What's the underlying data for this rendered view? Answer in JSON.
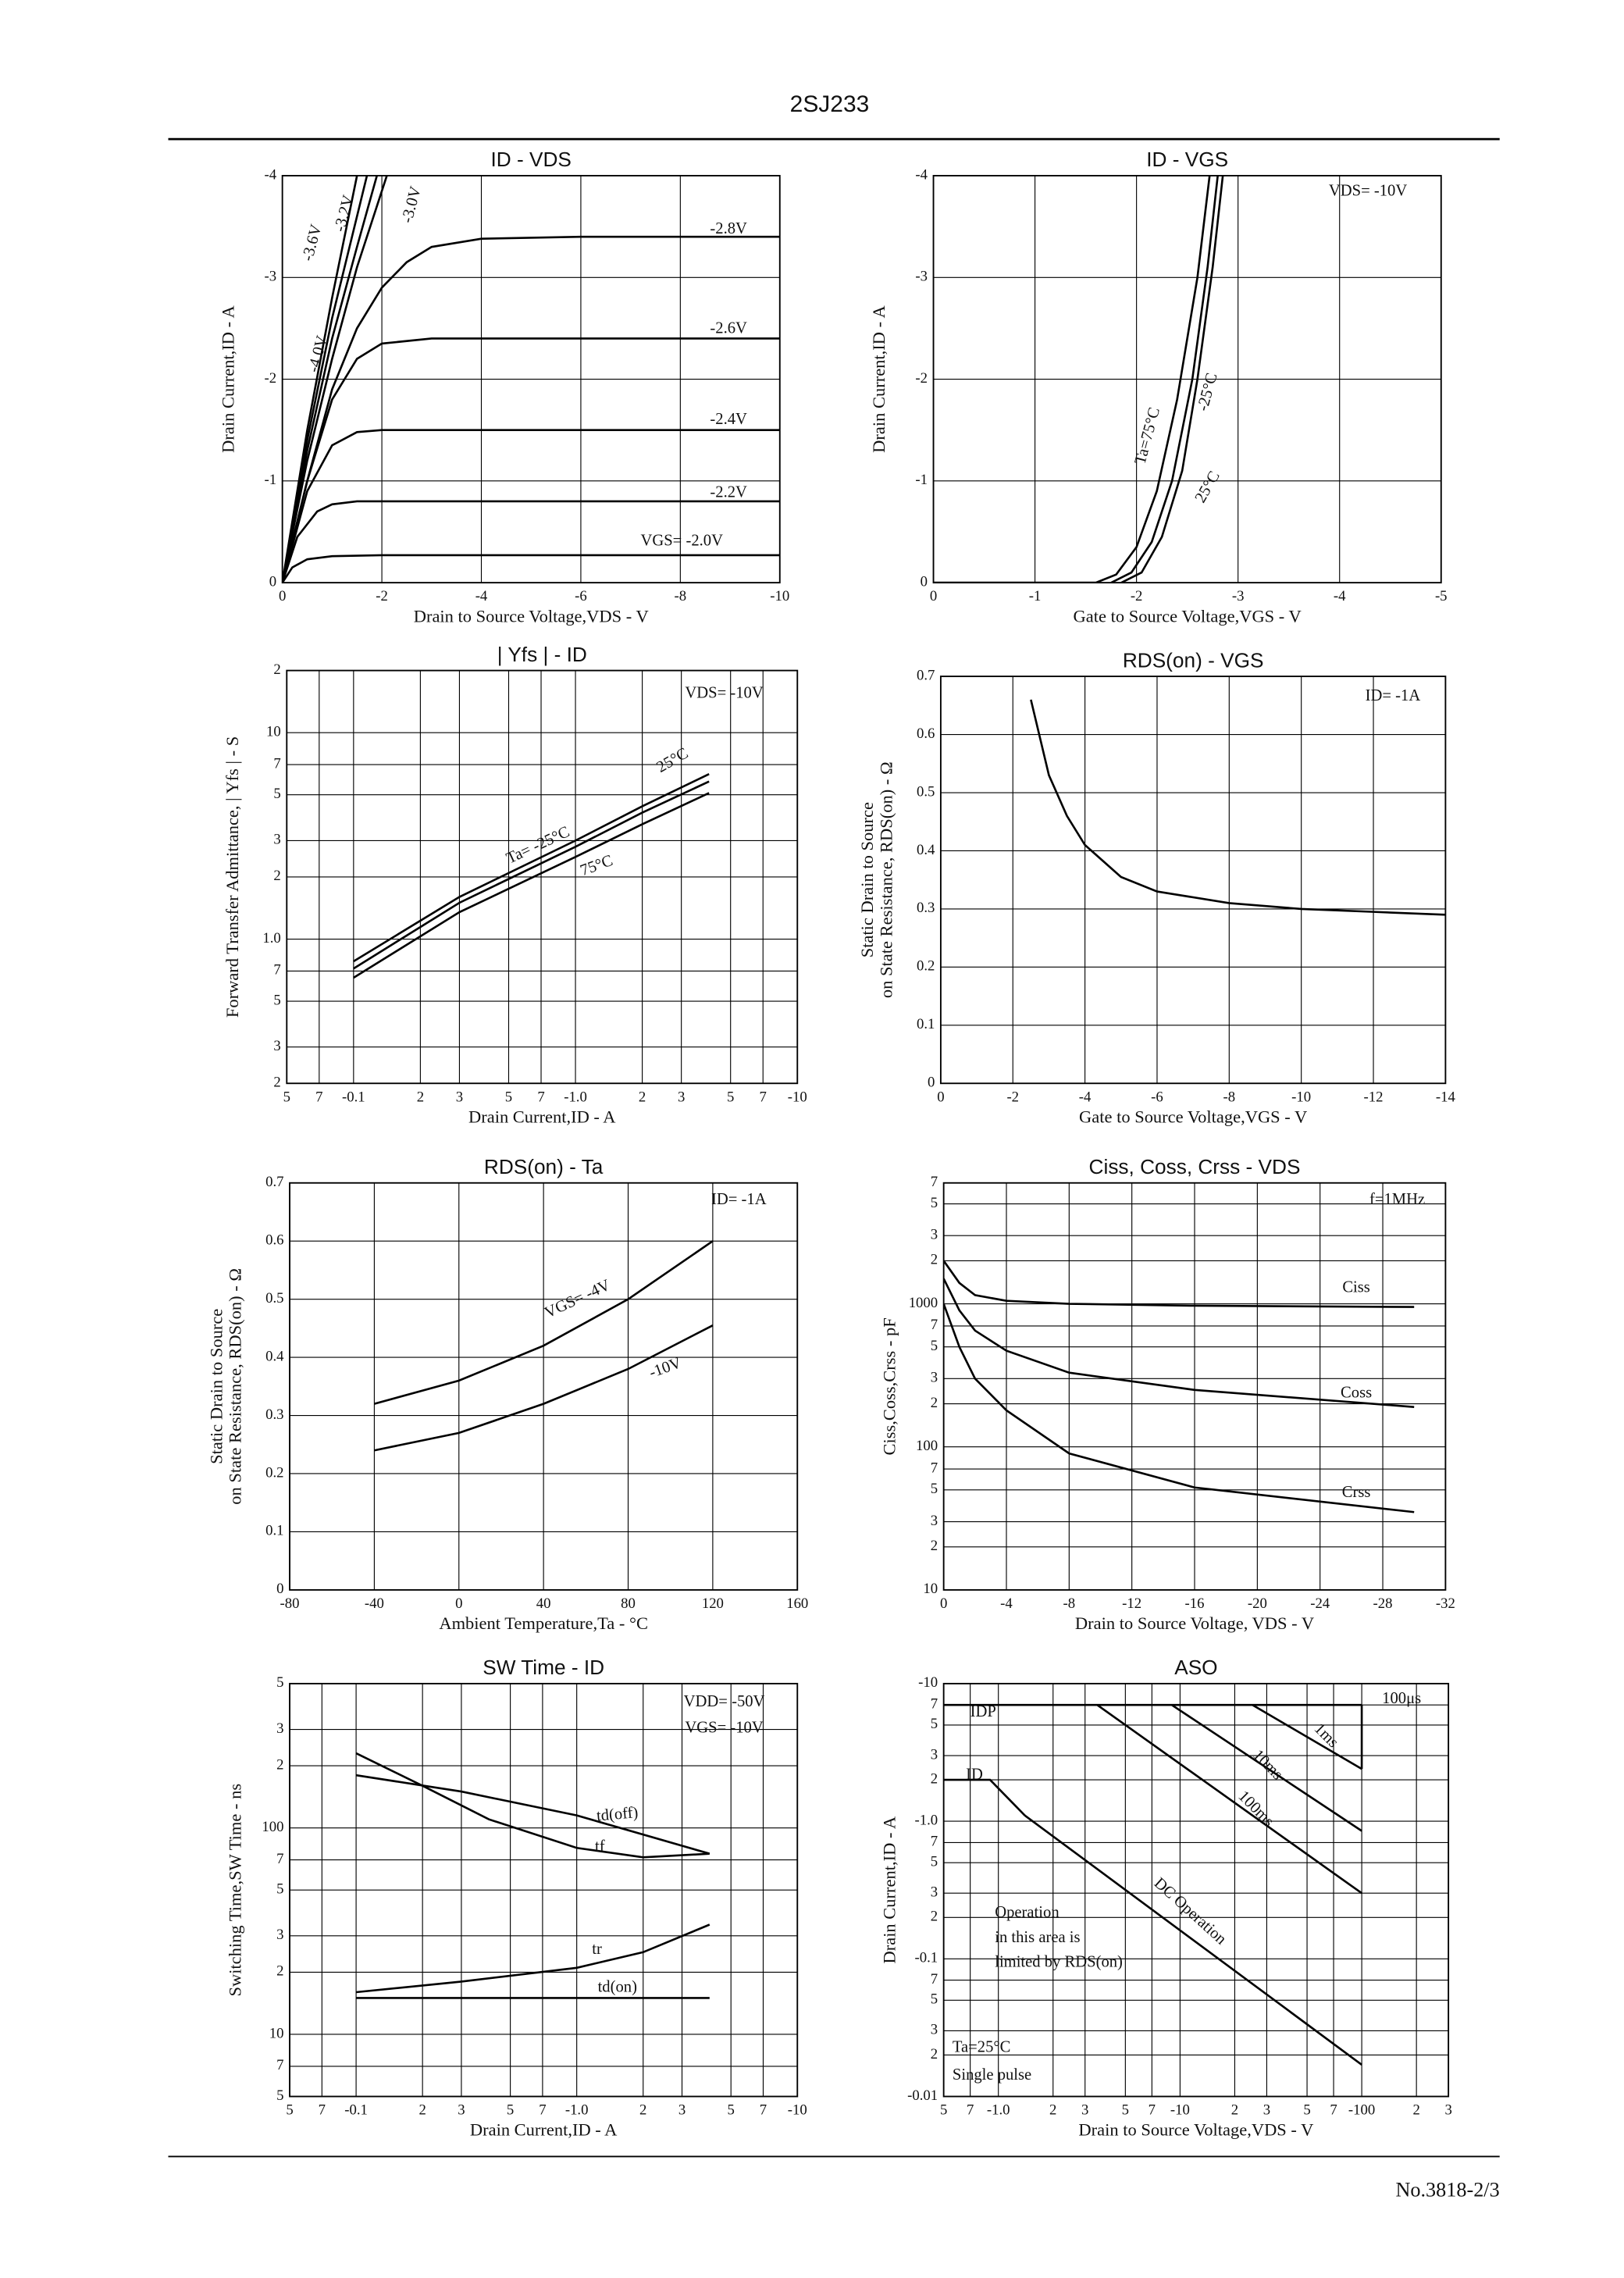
{
  "header": "2SJ233",
  "footer": "No.3818-2/3",
  "chart_data": [
    {
      "type": "line",
      "title": "ID - VDS",
      "xlabel": "Drain to Source Voltage,VDS - V",
      "ylabel": "Drain Current,ID - A",
      "xlim": [
        0,
        -10
      ],
      "ylim": [
        0,
        -4
      ],
      "xticks": [
        0,
        -2,
        -4,
        -6,
        -8,
        -10
      ],
      "yticks": [
        0,
        -1,
        -2,
        -3,
        -4
      ],
      "grid": true,
      "color": "#000000",
      "series": [
        {
          "name": "-2.8V",
          "x": [
            0,
            -0.5,
            -1,
            -1.5,
            -2,
            -2.5,
            -3,
            -4,
            -6,
            -8,
            -10
          ],
          "values": [
            0,
            -1.0,
            -1.9,
            -2.5,
            -2.9,
            -3.15,
            -3.3,
            -3.38,
            -3.4,
            -3.4,
            -3.4
          ]
        },
        {
          "name": "-2.6V",
          "x": [
            0,
            -0.5,
            -1,
            -1.5,
            -2,
            -3,
            -4,
            -6,
            -10
          ],
          "values": [
            0,
            -1.0,
            -1.8,
            -2.2,
            -2.35,
            -2.4,
            -2.4,
            -2.4,
            -2.4
          ]
        },
        {
          "name": "-2.4V",
          "x": [
            0,
            -0.5,
            -1,
            -1.5,
            -2,
            -4,
            -10
          ],
          "values": [
            0,
            -0.9,
            -1.35,
            -1.48,
            -1.5,
            -1.5,
            -1.5
          ]
        },
        {
          "name": "-2.2V",
          "x": [
            0,
            -0.3,
            -0.7,
            -1,
            -1.5,
            -4,
            -10
          ],
          "values": [
            0,
            -0.45,
            -0.7,
            -0.77,
            -0.8,
            -0.8,
            -0.8
          ]
        },
        {
          "name": "VGS= -2.0V",
          "x": [
            0,
            -0.2,
            -0.5,
            -1,
            -2,
            -10
          ],
          "values": [
            0,
            -0.15,
            -0.23,
            -0.26,
            -0.27,
            -0.27
          ]
        },
        {
          "name": "-3.0V",
          "x": [
            0,
            -0.5,
            -1,
            -1.5,
            -2.1
          ],
          "values": [
            0,
            -1.2,
            -2.2,
            -3.1,
            -4
          ]
        },
        {
          "name": "-3.2V",
          "x": [
            0,
            -0.5,
            -1,
            -1.5,
            -1.9
          ],
          "values": [
            0,
            -1.3,
            -2.4,
            -3.3,
            -4
          ]
        },
        {
          "name": "-3.6V",
          "x": [
            0,
            -0.5,
            -1,
            -1.7
          ],
          "values": [
            0,
            -1.4,
            -2.6,
            -4
          ]
        },
        {
          "name": "-4.0V",
          "x": [
            0,
            -0.5,
            -1,
            -1.5
          ],
          "values": [
            0,
            -1.5,
            -2.8,
            -4
          ]
        }
      ]
    },
    {
      "type": "line",
      "title": "ID - VGS",
      "xlabel": "Gate to Source Voltage,VGS - V",
      "ylabel": "Drain Current,ID - A",
      "xlim": [
        0,
        -5
      ],
      "ylim": [
        0,
        -4
      ],
      "xticks": [
        0,
        -1,
        -2,
        -3,
        -4,
        -5
      ],
      "yticks": [
        0,
        -1,
        -2,
        -3,
        -4
      ],
      "grid": true,
      "color": "#000000",
      "annotations": [
        "VDS= -10V"
      ],
      "series": [
        {
          "name": "Ta=75°C",
          "x": [
            0,
            -1.6,
            -1.8,
            -2.0,
            -2.2,
            -2.4,
            -2.6,
            -2.72
          ],
          "values": [
            0,
            0,
            -0.08,
            -0.35,
            -0.9,
            -1.8,
            -3.0,
            -4
          ]
        },
        {
          "name": "-25°C",
          "x": [
            -1.75,
            -1.95,
            -2.15,
            -2.35,
            -2.55,
            -2.7,
            -2.8
          ],
          "values": [
            0,
            -0.1,
            -0.4,
            -1.0,
            -2.0,
            -3.1,
            -4
          ]
        },
        {
          "name": "25°C",
          "x": [
            -1.85,
            -2.05,
            -2.25,
            -2.45,
            -2.6,
            -2.75,
            -2.85
          ],
          "values": [
            0,
            -0.1,
            -0.45,
            -1.1,
            -2.0,
            -3.1,
            -4
          ]
        }
      ]
    },
    {
      "type": "line",
      "title": "| Yfs | - ID",
      "xlabel": "Drain Current,ID - A",
      "ylabel": "Forward Transfer Admittance, | Yfs | - S",
      "xlog": true,
      "ylog": true,
      "xlim": [
        0.05,
        10
      ],
      "ylim": [
        0.2,
        20
      ],
      "grid": true,
      "color": "#000000",
      "xticks": [
        {
          "value": 0.05,
          "label": "5"
        },
        {
          "value": 0.07,
          "label": "7"
        },
        {
          "value": 0.1,
          "label": "-0.1"
        },
        {
          "value": 0.2,
          "label": "2"
        },
        {
          "value": 0.3,
          "label": "3"
        },
        {
          "value": 0.5,
          "label": "5"
        },
        {
          "value": 0.7,
          "label": "7"
        },
        {
          "value": 1,
          "label": "-1.0"
        },
        2,
        3,
        5,
        7,
        {
          "value": 10,
          "label": "-10"
        }
      ],
      "yticks": [
        {
          "value": 0.2,
          "label": "2"
        },
        {
          "value": 0.3,
          "label": "3"
        },
        {
          "value": 0.5,
          "label": "5"
        },
        {
          "value": 0.7,
          "label": "7"
        },
        {
          "value": 1,
          "label": "1.0"
        },
        2,
        3,
        5,
        7,
        10,
        {
          "value": 20,
          "label": "2"
        }
      ],
      "annotations": [
        "VDS= -10V"
      ],
      "series": [
        {
          "name": "Ta= -25°C",
          "x": [
            0.1,
            0.3,
            1,
            2,
            4
          ],
          "values": [
            0.78,
            1.6,
            3.0,
            4.4,
            6.3
          ]
        },
        {
          "name": "25°C",
          "x": [
            0.1,
            0.3,
            1,
            2,
            4
          ],
          "values": [
            0.72,
            1.5,
            2.8,
            4.1,
            5.8
          ]
        },
        {
          "name": "75°C",
          "x": [
            0.1,
            0.3,
            1,
            2,
            4
          ],
          "values": [
            0.65,
            1.35,
            2.5,
            3.6,
            5.1
          ]
        }
      ]
    },
    {
      "type": "line",
      "title": "RDS(on) - VGS",
      "xlabel": "Gate to Source Voltage,VGS - V",
      "ylabel": [
        "Static Drain to Source",
        "on State Resistance, RDS(on) - Ω"
      ],
      "xlim": [
        0,
        -14
      ],
      "ylim": [
        0,
        0.7
      ],
      "xticks": [
        0,
        -2,
        -4,
        -6,
        -8,
        -10,
        -12,
        -14
      ],
      "yticks": [
        0,
        0.1,
        0.2,
        0.3,
        0.4,
        0.5,
        0.6,
        0.7
      ],
      "grid": true,
      "color": "#000000",
      "annotations": [
        "ID= -1A"
      ],
      "series": [
        {
          "x": [
            -2.5,
            -3,
            -3.5,
            -4,
            -5,
            -6,
            -8,
            -10,
            -12,
            -14
          ],
          "values": [
            0.66,
            0.53,
            0.46,
            0.41,
            0.355,
            0.33,
            0.31,
            0.3,
            0.295,
            0.29
          ]
        }
      ]
    },
    {
      "type": "line",
      "title": "RDS(on) - Ta",
      "xlabel": "Ambient Temperature,Ta - °C",
      "ylabel": [
        "Static Drain to Source",
        "on State Resistance, RDS(on) - Ω"
      ],
      "xlim": [
        -80,
        160
      ],
      "ylim": [
        0,
        0.7
      ],
      "xticks": [
        -80,
        -40,
        0,
        40,
        80,
        120,
        160
      ],
      "yticks": [
        0,
        0.1,
        0.2,
        0.3,
        0.4,
        0.5,
        0.6,
        0.7
      ],
      "grid": true,
      "color": "#000000",
      "annotations": [
        "ID= -1A"
      ],
      "series": [
        {
          "name": "VGS= -4V",
          "x": [
            -40,
            0,
            40,
            80,
            120
          ],
          "values": [
            0.32,
            0.36,
            0.42,
            0.5,
            0.6
          ]
        },
        {
          "name": "-10V",
          "x": [
            -40,
            0,
            40,
            80,
            120
          ],
          "values": [
            0.24,
            0.27,
            0.32,
            0.38,
            0.455
          ]
        }
      ]
    },
    {
      "type": "line",
      "title": "Ciss, Coss, Crss - VDS",
      "xlabel": "Drain to Source Voltage, VDS - V",
      "ylabel": "Ciss,Coss,Crss - pF",
      "ylog": true,
      "xlim": [
        0,
        -32
      ],
      "ylim": [
        10,
        7000
      ],
      "xticks": [
        0,
        -4,
        -8,
        -12,
        -16,
        -20,
        -24,
        -28,
        -32
      ],
      "grid": true,
      "color": "#000000",
      "yticks": [
        10,
        {
          "value": 20,
          "label": "2"
        },
        {
          "value": 30,
          "label": "3"
        },
        {
          "value": 50,
          "label": "5"
        },
        {
          "value": 70,
          "label": "7"
        },
        100,
        {
          "value": 200,
          "label": "2"
        },
        {
          "value": 300,
          "label": "3"
        },
        {
          "value": 500,
          "label": "5"
        },
        {
          "value": 700,
          "label": "7"
        },
        1000,
        {
          "value": 2000,
          "label": "2"
        },
        {
          "value": 3000,
          "label": "3"
        },
        {
          "value": 5000,
          "label": "5"
        },
        {
          "value": 7000,
          "label": "7"
        }
      ],
      "annotations": [
        "f=1MHz"
      ],
      "series": [
        {
          "name": "Ciss",
          "x": [
            0,
            -1,
            -2,
            -4,
            -8,
            -16,
            -30
          ],
          "values": [
            2000,
            1400,
            1150,
            1050,
            1000,
            970,
            950
          ]
        },
        {
          "name": "Coss",
          "x": [
            0,
            -1,
            -2,
            -4,
            -8,
            -16,
            -30
          ],
          "values": [
            1500,
            900,
            650,
            470,
            330,
            250,
            190
          ]
        },
        {
          "name": "Crss",
          "x": [
            0,
            -1,
            -2,
            -4,
            -8,
            -16,
            -30
          ],
          "values": [
            1000,
            500,
            300,
            180,
            90,
            52,
            35
          ]
        }
      ]
    },
    {
      "type": "line",
      "title": "SW Time - ID",
      "xlabel": "Drain Current,ID - A",
      "ylabel": "Switching Time,SW Time - ns",
      "xlog": true,
      "ylog": true,
      "xlim": [
        0.05,
        10
      ],
      "ylim": [
        5,
        500
      ],
      "grid": true,
      "color": "#000000",
      "xticks": [
        {
          "value": 0.05,
          "label": "5"
        },
        {
          "value": 0.07,
          "label": "7"
        },
        {
          "value": 0.1,
          "label": "-0.1"
        },
        {
          "value": 0.2,
          "label": "2"
        },
        {
          "value": 0.3,
          "label": "3"
        },
        {
          "value": 0.5,
          "label": "5"
        },
        {
          "value": 0.7,
          "label": "7"
        },
        {
          "value": 1,
          "label": "-1.0"
        },
        2,
        3,
        5,
        7,
        {
          "value": 10,
          "label": "-10"
        }
      ],
      "yticks": [
        5,
        7,
        10,
        {
          "value": 20,
          "label": "2"
        },
        {
          "value": 30,
          "label": "3"
        },
        {
          "value": 50,
          "label": "5"
        },
        {
          "value": 70,
          "label": "7"
        },
        100,
        {
          "value": 200,
          "label": "2"
        },
        {
          "value": 300,
          "label": "3"
        },
        {
          "value": 500,
          "label": "5"
        }
      ],
      "annotations": [
        "VDD= -50V",
        "VGS= -10V"
      ],
      "series": [
        {
          "name": "td(off)",
          "x": [
            0.1,
            0.3,
            1,
            4
          ],
          "values": [
            180,
            150,
            115,
            75
          ]
        },
        {
          "name": "tf",
          "x": [
            0.1,
            0.2,
            0.4,
            1,
            2,
            4
          ],
          "values": [
            230,
            160,
            110,
            80,
            72,
            75
          ]
        },
        {
          "name": "tr",
          "x": [
            0.1,
            0.3,
            1,
            2,
            4
          ],
          "values": [
            16,
            18,
            21,
            25,
            34
          ]
        },
        {
          "name": "td(on)",
          "x": [
            0.1,
            4
          ],
          "values": [
            15,
            15
          ]
        }
      ]
    },
    {
      "type": "line",
      "title": "ASO",
      "xlabel": "Drain to Source Voltage,VDS - V",
      "ylabel": "Drain Current,ID - A",
      "xlog": true,
      "ylog": true,
      "xlim": [
        0.5,
        300
      ],
      "ylim": [
        0.01,
        10
      ],
      "grid": true,
      "color": "#000000",
      "xticks": [
        {
          "value": 0.5,
          "label": "5"
        },
        {
          "value": 0.7,
          "label": "7"
        },
        {
          "value": 1,
          "label": "-1.0"
        },
        2,
        3,
        5,
        7,
        {
          "value": 10,
          "label": "-10"
        },
        {
          "value": 20,
          "label": "2"
        },
        {
          "value": 30,
          "label": "3"
        },
        {
          "value": 50,
          "label": "5"
        },
        {
          "value": 70,
          "label": "7"
        },
        {
          "value": 100,
          "label": "-100"
        },
        {
          "value": 200,
          "label": "2"
        },
        {
          "value": 300,
          "label": "3"
        }
      ],
      "yticks": [
        {
          "value": 0.01,
          "label": "-0.01"
        },
        {
          "value": 0.02,
          "label": "2"
        },
        {
          "value": 0.03,
          "label": "3"
        },
        {
          "value": 0.05,
          "label": "5"
        },
        {
          "value": 0.07,
          "label": "7"
        },
        {
          "value": 0.1,
          "label": "-0.1"
        },
        {
          "value": 0.2,
          "label": "2"
        },
        {
          "value": 0.3,
          "label": "3"
        },
        {
          "value": 0.5,
          "label": "5"
        },
        {
          "value": 0.7,
          "label": "7"
        },
        {
          "value": 1,
          "label": "-1.0"
        },
        2,
        3,
        5,
        7,
        {
          "value": 10,
          "label": "-10"
        }
      ],
      "annotations": [
        "Operation",
        "in this area is",
        "limited by RDS(on)",
        "Ta=25°C",
        "Single pulse"
      ],
      "series": [
        {
          "name": "IDP",
          "x": [
            0.5,
            100
          ],
          "values": [
            7,
            7
          ]
        },
        {
          "name": "ID",
          "x": [
            0.5,
            0.9,
            1.4
          ],
          "values": [
            2,
            2,
            1.1
          ]
        },
        {
          "name": "100μs",
          "x": [
            100,
            100
          ],
          "values": [
            7,
            2.4
          ]
        },
        {
          "name": "1ms",
          "x": [
            25,
            100
          ],
          "values": [
            7,
            2.4
          ]
        },
        {
          "name": "10ms",
          "x": [
            9,
            100
          ],
          "values": [
            7,
            0.85
          ]
        },
        {
          "name": "100ms",
          "x": [
            3.5,
            100
          ],
          "values": [
            7,
            0.3
          ]
        },
        {
          "name": "DC Operation",
          "x": [
            1.4,
            100
          ],
          "values": [
            1.1,
            0.017
          ]
        }
      ]
    }
  ]
}
